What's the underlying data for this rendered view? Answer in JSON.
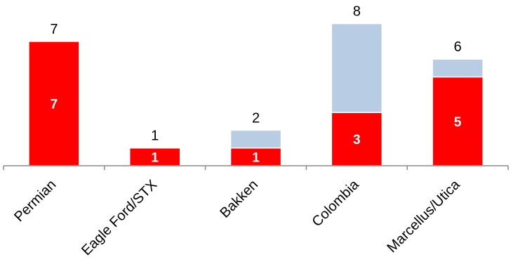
{
  "chart_data": {
    "type": "bar",
    "stacked": true,
    "categories": [
      "Permian",
      "Eagle Ford/STX",
      "Bakken",
      "Colombia",
      "Marcellus/Utica"
    ],
    "series": [
      {
        "values": [
          7,
          1,
          1,
          3,
          5
        ],
        "color": "#ff0000",
        "labels": [
          "7",
          "1",
          "1",
          "3",
          "5"
        ]
      },
      {
        "values": [
          0,
          0,
          1,
          5,
          1
        ],
        "color": "#b8cce4"
      }
    ],
    "totals": [
      7,
      1,
      2,
      8,
      6
    ],
    "total_labels": [
      "7",
      "1",
      "2",
      "8",
      "6"
    ],
    "ylim": [
      0,
      8
    ],
    "grid": false,
    "legend": "none",
    "title": "",
    "xlabel": "",
    "ylabel": ""
  }
}
